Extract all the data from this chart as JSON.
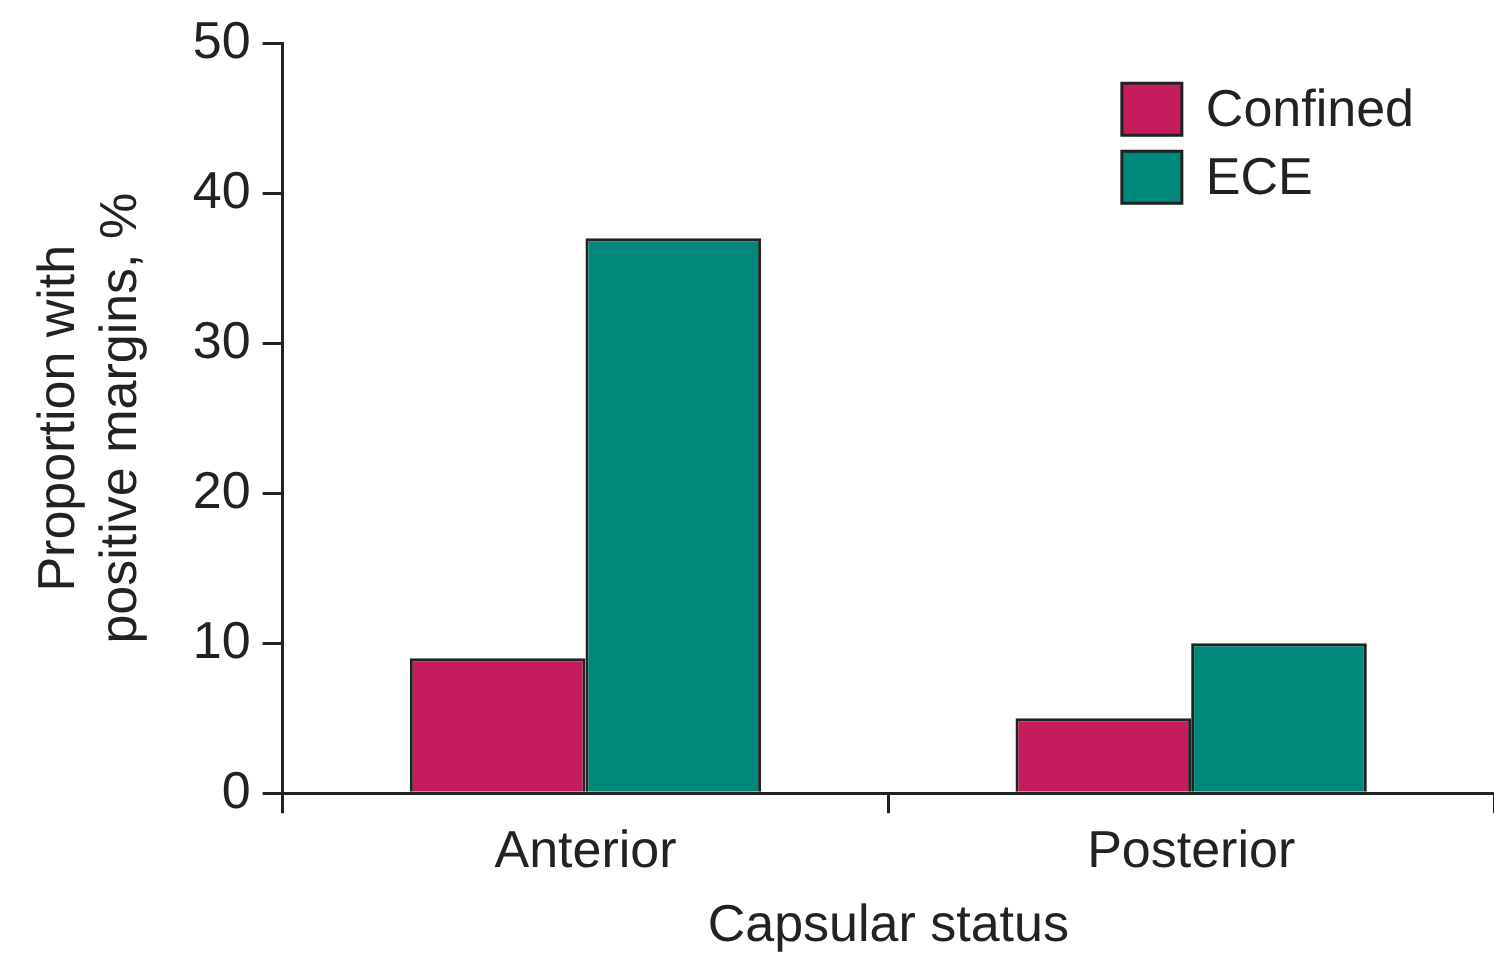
{
  "chart_data": {
    "type": "bar",
    "xlabel": "Capsular status",
    "ylabel": "Proportion with positive margins, %",
    "categories": [
      "Anterior",
      "Posterior"
    ],
    "series": [
      {
        "name": "Confined",
        "color": "#c41c5c",
        "values": [
          9,
          5
        ]
      },
      {
        "name": "ECE",
        "color": "#00897b",
        "values": [
          37,
          10
        ]
      }
    ],
    "ylim": [
      0,
      50
    ],
    "yticks": [
      0,
      10,
      20,
      30,
      40,
      50
    ],
    "grid": false,
    "legend": "top right"
  }
}
